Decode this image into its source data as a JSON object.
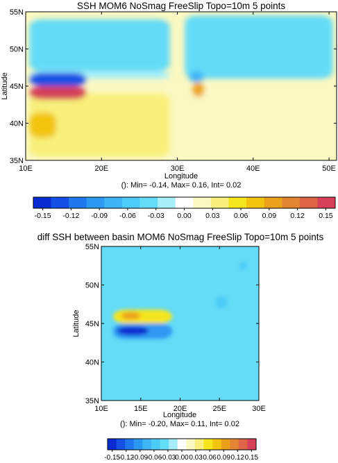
{
  "palette": [
    "#0a2bd2",
    "#1450e6",
    "#1f78ef",
    "#2d98f2",
    "#3fb4f5",
    "#4ccbf6",
    "#64dbf7",
    "#a6eef9",
    "#ffffff",
    "#fbf8c2",
    "#f8f07a",
    "#f5e51c",
    "#f2c40e",
    "#eba21a",
    "#e38532",
    "#dd6444",
    "#d6405a"
  ],
  "chart_data": [
    {
      "type": "heatmap",
      "title": "SSH MOM6 NoSmag FreeSlip Topo=10m 5 points",
      "xlabel": "Longitude",
      "ylabel": "Latitude",
      "xlim": [
        10,
        51
      ],
      "ylim": [
        35,
        55
      ],
      "x_ticks": [
        "10E",
        "20E",
        "30E",
        "40E",
        "50E"
      ],
      "x_tick_values": [
        10,
        20,
        30,
        40,
        50
      ],
      "y_ticks": [
        "35N",
        "40N",
        "45N",
        "50N",
        "55N"
      ],
      "y_tick_values": [
        35,
        40,
        45,
        50,
        55
      ],
      "stats": "(): Min= -0.14, Max= 0.16, Int= 0.02",
      "colorbar_ticks": [
        "-0.15",
        "-0.12",
        "-0.09",
        "-0.06",
        "-0.03",
        "0.00",
        "0.03",
        "0.06",
        "0.09",
        "0.12",
        "0.15"
      ],
      "colorbar_range": [
        -0.16,
        0.16
      ],
      "regions": [
        {
          "name": "yellow-south-west",
          "x0": 10.5,
          "x1": 29,
          "y0": 35.5,
          "y1": 44,
          "value": 0.04
        },
        {
          "name": "orange-core-west",
          "x0": 10.5,
          "x1": 14,
          "y0": 38,
          "y1": 41.5,
          "value": 0.07
        },
        {
          "name": "cyan-north-west",
          "x0": 10.5,
          "x1": 29,
          "y0": 47,
          "y1": 54,
          "value": -0.04
        },
        {
          "name": "light-cyan-north-west",
          "x0": 10.5,
          "x1": 29,
          "y0": 46,
          "y1": 47,
          "value": -0.02
        },
        {
          "name": "blue-band",
          "x0": 10.5,
          "x1": 18,
          "y0": 45,
          "y1": 46.8,
          "value": -0.13
        },
        {
          "name": "red-band",
          "x0": 10.5,
          "x1": 18,
          "y0": 43.2,
          "y1": 45,
          "value": 0.15
        },
        {
          "name": "blue-north-east",
          "x0": 31,
          "x1": 50.5,
          "y0": 47,
          "y1": 54,
          "value": -0.07
        },
        {
          "name": "cyan-north-east-edge",
          "x0": 31,
          "x1": 50.5,
          "y0": 46,
          "y1": 54.5,
          "value": -0.04
        },
        {
          "name": "yellow-south-east",
          "x0": 31,
          "x1": 43,
          "y0": 36.5,
          "y1": 44,
          "value": 0.02
        },
        {
          "name": "orange-eddy-east",
          "x0": 32,
          "x1": 33.5,
          "y0": 43.5,
          "y1": 45.5,
          "value": 0.09
        },
        {
          "name": "blue-eddy-east",
          "x0": 31.5,
          "x1": 33.5,
          "y0": 45.5,
          "y1": 47,
          "value": -0.08
        }
      ]
    },
    {
      "type": "heatmap",
      "title": "diff SSH between basin MOM6 NoSmag FreeSlip Topo=10m 5 points",
      "xlabel": "Longitude",
      "ylabel": "Latitude",
      "xlim": [
        10,
        30
      ],
      "ylim": [
        35,
        55
      ],
      "x_ticks": [
        "10E",
        "15E",
        "20E",
        "25E",
        "30E"
      ],
      "x_tick_values": [
        10,
        15,
        20,
        25,
        30
      ],
      "y_ticks": [
        "35N",
        "40N",
        "45N",
        "50N",
        "55N"
      ],
      "y_tick_values": [
        35,
        40,
        45,
        50,
        55
      ],
      "stats": "(): Min= -0.20, Max= 0.11, Int= 0.02",
      "colorbar_ticks": [
        "-0.15",
        "-0.12",
        "-0.09",
        "-0.06",
        "-0.03",
        "0.00",
        "0.03",
        "0.06",
        "0.09",
        "0.12",
        "0.15"
      ],
      "colorbar_range": [
        -0.16,
        0.16
      ],
      "background_value": -0.04,
      "regions": [
        {
          "name": "yellow-lobe",
          "x0": 11.5,
          "x1": 19,
          "y0": 45,
          "y1": 46.8,
          "value": 0.05
        },
        {
          "name": "orange-core",
          "x0": 12.5,
          "x1": 15,
          "y0": 45.5,
          "y1": 46.5,
          "value": 0.09
        },
        {
          "name": "blue-lobe",
          "x0": 11.5,
          "x1": 19,
          "y0": 43,
          "y1": 45,
          "value": -0.1
        },
        {
          "name": "dark-blue-core",
          "x0": 12,
          "x1": 16,
          "y0": 43.5,
          "y1": 44.6,
          "value": -0.15
        },
        {
          "name": "cyan-eddy-east",
          "x0": 24.5,
          "x1": 26,
          "y0": 47,
          "y1": 48.5,
          "value": -0.06
        },
        {
          "name": "cyan-eddy-ne",
          "x0": 27.5,
          "x1": 28.5,
          "y0": 52,
          "y1": 53,
          "value": -0.06
        }
      ]
    }
  ]
}
